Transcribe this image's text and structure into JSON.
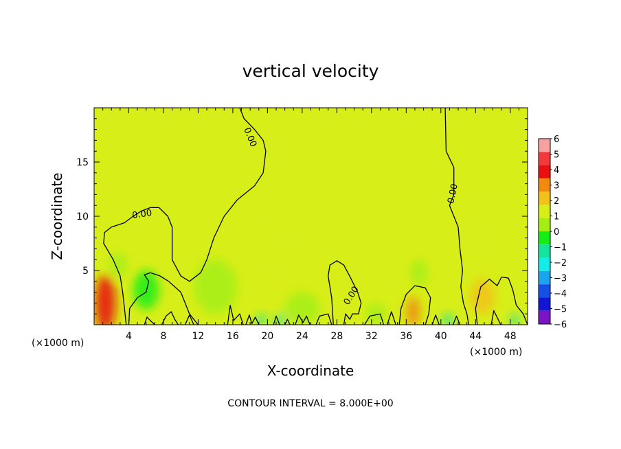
{
  "chart_data": {
    "type": "heatmap",
    "title": "vertical velocity",
    "xlabel": "X-coordinate",
    "ylabel": "Z-coordinate",
    "x_unit": "(×1000 m)",
    "x_unit_right": "(×1000 m)",
    "xlim": [
      0,
      50
    ],
    "ylim": [
      0,
      20
    ],
    "x_ticks": [
      4,
      8,
      12,
      16,
      20,
      24,
      28,
      32,
      36,
      40,
      44,
      48
    ],
    "y_ticks": [
      5,
      10,
      15
    ],
    "colorbar": {
      "levels": [
        6,
        5,
        4,
        3,
        2,
        1,
        0,
        -1,
        -2,
        -3,
        -4,
        -5,
        -6
      ],
      "labels": [
        "6",
        "5",
        "4",
        "3",
        "2",
        "1",
        "0",
        "−1",
        "−2",
        "−3",
        "−4",
        "−5",
        "−6"
      ],
      "colors": [
        "#f7a1a1",
        "#f23a3a",
        "#e81010",
        "#f08a10",
        "#f2c21a",
        "#d8ee18",
        "#a4ee14",
        "#14ee14",
        "#14e49c",
        "#14ece8",
        "#1ca4ec",
        "#1450e4",
        "#1414d4",
        "#7a14c4"
      ]
    },
    "contour_labels": [
      "0.00",
      "0.00",
      "0.00",
      "0.00"
    ],
    "footnote": "CONTOUR INTERVAL = 8.000E+00",
    "blobs": [
      {
        "x": 1.3,
        "z": 2.0,
        "rx": 1.2,
        "rz": 2.6,
        "value": 3.2
      },
      {
        "x": 36.8,
        "z": 1.2,
        "rx": 0.8,
        "rz": 1.4,
        "value": 2.6
      },
      {
        "x": 44.8,
        "z": 2.6,
        "rx": 1.4,
        "rz": 1.6,
        "value": 1.2
      },
      {
        "x": 47.5,
        "z": 7.5,
        "rx": 2.5,
        "rz": 3.0,
        "value": 0.6
      },
      {
        "x": 43.5,
        "z": 8.5,
        "rx": 1.5,
        "rz": 2.0,
        "value": 0.4
      },
      {
        "x": 30.0,
        "z": 4.0,
        "rx": 1.5,
        "rz": 1.5,
        "value": 0.5
      },
      {
        "x": 22.0,
        "z": 6.5,
        "rx": 4.0,
        "rz": 2.5,
        "value": 0.3
      },
      {
        "x": 6.0,
        "z": 3.2,
        "rx": 1.5,
        "rz": 1.8,
        "value": -1.0
      },
      {
        "x": 2.8,
        "z": 5.5,
        "rx": 1.0,
        "rz": 1.2,
        "value": -0.6
      },
      {
        "x": 14.0,
        "z": 3.5,
        "rx": 2.5,
        "rz": 2.5,
        "value": -0.5
      },
      {
        "x": 24.0,
        "z": 1.5,
        "rx": 2.0,
        "rz": 1.5,
        "value": -0.5
      },
      {
        "x": 19.3,
        "z": 0.4,
        "rx": 0.5,
        "rz": 0.6,
        "value": -2.0
      },
      {
        "x": 21.5,
        "z": 0.4,
        "rx": 0.5,
        "rz": 0.6,
        "value": -2.0
      },
      {
        "x": 40.8,
        "z": 0.4,
        "rx": 0.6,
        "rz": 0.6,
        "value": -2.2
      },
      {
        "x": 48.5,
        "z": 0.4,
        "rx": 0.5,
        "rz": 0.6,
        "value": -2.2
      },
      {
        "x": 37.5,
        "z": 4.8,
        "rx": 1.0,
        "rz": 1.2,
        "value": -0.8
      },
      {
        "x": 32.5,
        "z": 1.0,
        "rx": 1.2,
        "rz": 1.0,
        "value": -0.7
      }
    ],
    "contours": [
      [
        [
          16.8,
          20.0
        ],
        [
          17.3,
          19.0
        ],
        [
          18.5,
          18.0
        ],
        [
          19.5,
          17.0
        ],
        [
          19.8,
          16.0
        ],
        [
          19.5,
          14.0
        ],
        [
          18.5,
          12.8
        ],
        [
          16.5,
          11.5
        ],
        [
          15.0,
          10.0
        ],
        [
          13.8,
          8.0
        ],
        [
          13.0,
          6.0
        ],
        [
          12.3,
          4.8
        ],
        [
          11.0,
          4.0
        ],
        [
          10.0,
          4.5
        ],
        [
          9.0,
          6.0
        ],
        [
          9.0,
          9.0
        ],
        [
          8.5,
          10.0
        ],
        [
          7.5,
          10.8
        ],
        [
          6.5,
          10.8
        ],
        [
          5.5,
          10.5
        ],
        [
          4.5,
          10.0
        ],
        [
          3.5,
          9.4
        ],
        [
          2.0,
          9.0
        ],
        [
          1.2,
          8.5
        ],
        [
          1.1,
          7.5
        ],
        [
          2.2,
          6.0
        ],
        [
          3.0,
          4.5
        ],
        [
          3.3,
          3.0
        ],
        [
          3.5,
          1.5
        ],
        [
          3.7,
          0.0
        ]
      ],
      [
        [
          4.0,
          0.0
        ],
        [
          4.1,
          1.5
        ],
        [
          5.0,
          2.5
        ],
        [
          6.0,
          3.0
        ],
        [
          6.3,
          4.0
        ],
        [
          5.8,
          4.6
        ],
        [
          6.5,
          4.8
        ],
        [
          7.6,
          4.5
        ],
        [
          8.6,
          4.0
        ],
        [
          10.0,
          3.0
        ],
        [
          10.5,
          2.0
        ],
        [
          11.0,
          1.0
        ],
        [
          12.0,
          0.0
        ]
      ],
      [
        [
          5.8,
          0.0
        ],
        [
          6.1,
          0.7
        ],
        [
          6.6,
          0.3
        ],
        [
          7.0,
          0.0
        ]
      ],
      [
        [
          7.8,
          0.0
        ],
        [
          8.3,
          0.8
        ],
        [
          8.9,
          1.2
        ],
        [
          9.3,
          0.5
        ],
        [
          9.7,
          0.0
        ]
      ],
      [
        [
          10.5,
          0.0
        ],
        [
          11.0,
          0.9
        ],
        [
          11.5,
          0.0
        ]
      ],
      [
        [
          15.4,
          0.0
        ],
        [
          15.7,
          1.8
        ],
        [
          16.1,
          0.4
        ],
        [
          16.8,
          1.0
        ],
        [
          17.2,
          0.0
        ]
      ],
      [
        [
          17.5,
          0.0
        ],
        [
          17.9,
          0.9
        ],
        [
          18.2,
          0.1
        ],
        [
          18.6,
          0.7
        ],
        [
          19.0,
          0.0
        ]
      ],
      [
        [
          20.7,
          0.0
        ],
        [
          21.0,
          0.8
        ],
        [
          21.4,
          0.0
        ]
      ],
      [
        [
          22.0,
          0.0
        ],
        [
          22.3,
          0.5
        ],
        [
          22.6,
          0.0
        ]
      ],
      [
        [
          23.2,
          0.0
        ],
        [
          23.6,
          0.9
        ],
        [
          24.1,
          0.2
        ],
        [
          24.5,
          0.8
        ],
        [
          24.9,
          0.0
        ]
      ],
      [
        [
          25.6,
          0.0
        ],
        [
          26.0,
          0.8
        ],
        [
          27.0,
          1.0
        ],
        [
          27.4,
          0.0
        ]
      ],
      [
        [
          27.6,
          0.0
        ],
        [
          27.4,
          2.5
        ],
        [
          27.0,
          4.5
        ],
        [
          27.2,
          5.5
        ],
        [
          28.0,
          5.9
        ],
        [
          28.8,
          5.5
        ],
        [
          29.6,
          4.3
        ],
        [
          30.4,
          3.0
        ],
        [
          30.8,
          2.0
        ],
        [
          30.5,
          1.0
        ],
        [
          29.8,
          1.0
        ],
        [
          29.5,
          0.5
        ],
        [
          29.0,
          1.0
        ],
        [
          28.8,
          0.0
        ]
      ],
      [
        [
          31.2,
          0.0
        ],
        [
          31.8,
          0.8
        ],
        [
          33.0,
          1.0
        ],
        [
          33.4,
          0.0
        ]
      ],
      [
        [
          33.8,
          0.0
        ],
        [
          34.3,
          1.2
        ],
        [
          34.8,
          0.0
        ]
      ],
      [
        [
          35.2,
          0.0
        ],
        [
          35.4,
          1.5
        ],
        [
          36.0,
          2.8
        ],
        [
          37.0,
          3.6
        ],
        [
          38.2,
          3.4
        ],
        [
          38.8,
          2.5
        ],
        [
          38.6,
          1.0
        ],
        [
          38.2,
          0.0
        ]
      ],
      [
        [
          39.0,
          0.0
        ],
        [
          39.4,
          0.9
        ],
        [
          39.8,
          0.0
        ]
      ],
      [
        [
          40.5,
          20.0
        ],
        [
          40.6,
          16.0
        ],
        [
          41.5,
          14.5
        ],
        [
          41.5,
          12.0
        ],
        [
          41.0,
          11.0
        ],
        [
          41.5,
          10.0
        ],
        [
          42.0,
          9.0
        ],
        [
          42.2,
          7.0
        ],
        [
          42.5,
          5.0
        ],
        [
          42.3,
          3.5
        ],
        [
          42.6,
          2.0
        ],
        [
          43.0,
          1.0
        ],
        [
          43.2,
          0.0
        ]
      ],
      [
        [
          41.4,
          0.0
        ],
        [
          41.8,
          0.8
        ],
        [
          42.2,
          0.0
        ]
      ],
      [
        [
          44.2,
          0.0
        ],
        [
          44.0,
          1.5
        ],
        [
          44.6,
          3.5
        ],
        [
          45.6,
          4.2
        ],
        [
          46.5,
          3.6
        ],
        [
          47.0,
          4.4
        ],
        [
          47.8,
          4.3
        ],
        [
          48.3,
          3.2
        ],
        [
          48.7,
          1.8
        ],
        [
          49.5,
          1.0
        ],
        [
          50.0,
          0.0
        ]
      ],
      [
        [
          45.8,
          0.0
        ],
        [
          46.1,
          1.3
        ],
        [
          46.6,
          0.5
        ],
        [
          46.9,
          0.0
        ]
      ]
    ]
  }
}
